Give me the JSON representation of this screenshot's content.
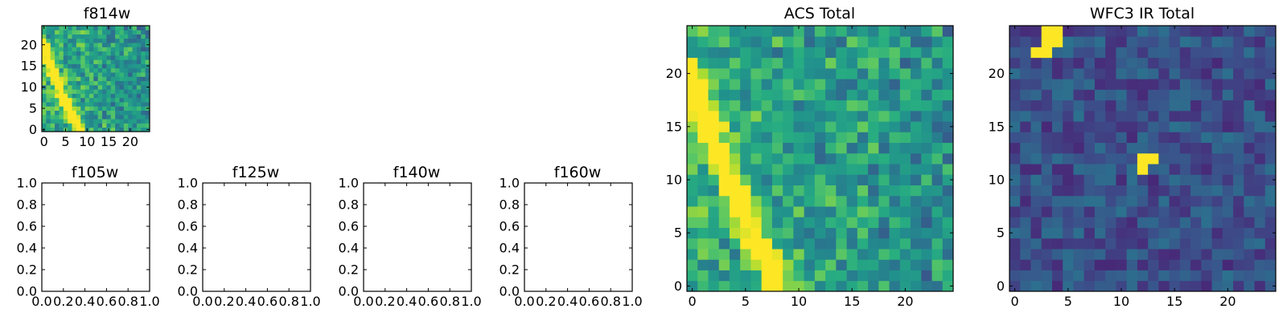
{
  "chart_data": [
    {
      "id": "f814w",
      "type": "heatmap",
      "title": "f814w",
      "colormap": "viridis",
      "grid_size": [
        25,
        25
      ],
      "xlim": [
        -0.5,
        24.5
      ],
      "ylim": [
        -0.5,
        24.5
      ],
      "xticks": [
        0,
        5,
        10,
        15,
        20
      ],
      "xtick_labels": [
        "0",
        "5",
        "10",
        "15",
        "20"
      ],
      "yticks": [
        0,
        5,
        10,
        15,
        20
      ],
      "ytick_labels": [
        "0",
        "5",
        "10",
        "15",
        "20"
      ],
      "feature": "bright diagonal arc from (0,20) to (8,0)",
      "values_source": "procedural"
    },
    {
      "id": "f105w",
      "type": "empty",
      "title": "f105w",
      "xlim": [
        0,
        1
      ],
      "ylim": [
        0,
        1
      ],
      "xtick_labels": [
        "0.0",
        "0.2",
        "0.4",
        "0.6",
        "0.8",
        "1.0"
      ],
      "ytick_labels": [
        "0.0",
        "0.2",
        "0.4",
        "0.6",
        "0.8",
        "1.0"
      ]
    },
    {
      "id": "f125w",
      "type": "empty",
      "title": "f125w",
      "xlim": [
        0,
        1
      ],
      "ylim": [
        0,
        1
      ],
      "xtick_labels": [
        "0.0",
        "0.2",
        "0.4",
        "0.6",
        "0.8",
        "1.0"
      ],
      "ytick_labels": [
        "0.0",
        "0.2",
        "0.4",
        "0.6",
        "0.8",
        "1.0"
      ]
    },
    {
      "id": "f140w",
      "type": "empty",
      "title": "f140w",
      "xlim": [
        0,
        1
      ],
      "ylim": [
        0,
        1
      ],
      "xtick_labels": [
        "0.0",
        "0.2",
        "0.4",
        "0.6",
        "0.8",
        "1.0"
      ],
      "ytick_labels": [
        "0.0",
        "0.2",
        "0.4",
        "0.6",
        "0.8",
        "1.0"
      ]
    },
    {
      "id": "f160w",
      "type": "empty",
      "title": "f160w",
      "xlim": [
        0,
        1
      ],
      "ylim": [
        0,
        1
      ],
      "xtick_labels": [
        "0.0",
        "0.2",
        "0.4",
        "0.6",
        "0.8",
        "1.0"
      ],
      "ytick_labels": [
        "0.0",
        "0.2",
        "0.4",
        "0.6",
        "0.8",
        "1.0"
      ]
    },
    {
      "id": "acs_total",
      "type": "heatmap",
      "title": "ACS Total",
      "colormap": "viridis",
      "grid_size": [
        25,
        25
      ],
      "xlim": [
        -0.5,
        24.5
      ],
      "ylim": [
        -0.5,
        24.5
      ],
      "xticks": [
        0,
        5,
        10,
        15,
        20
      ],
      "xtick_labels": [
        "0",
        "5",
        "10",
        "15",
        "20"
      ],
      "yticks": [
        0,
        5,
        10,
        15,
        20
      ],
      "ytick_labels": [
        "0",
        "5",
        "10",
        "15",
        "20"
      ],
      "feature": "bright diagonal arc from (0,20) to (8,0)",
      "values_source": "procedural"
    },
    {
      "id": "wfc3_ir_total",
      "type": "heatmap",
      "title": "WFC3 IR Total",
      "colormap": "viridis",
      "grid_size": [
        25,
        25
      ],
      "xlim": [
        -0.5,
        24.5
      ],
      "ylim": [
        -0.5,
        24.5
      ],
      "xticks": [
        0,
        5,
        10,
        15,
        20
      ],
      "xtick_labels": [
        "0",
        "5",
        "10",
        "15",
        "20"
      ],
      "yticks": [
        0,
        5,
        10,
        15,
        20
      ],
      "ytick_labels": [
        "0",
        "5",
        "10",
        "15",
        "20"
      ],
      "hotspots": [
        [
          3,
          24
        ],
        [
          4,
          24
        ],
        [
          3,
          23
        ],
        [
          4,
          23
        ],
        [
          2,
          22
        ],
        [
          3,
          22
        ],
        [
          12,
          12
        ],
        [
          13,
          12
        ],
        [
          12,
          11
        ]
      ],
      "values_source": "procedural"
    }
  ]
}
